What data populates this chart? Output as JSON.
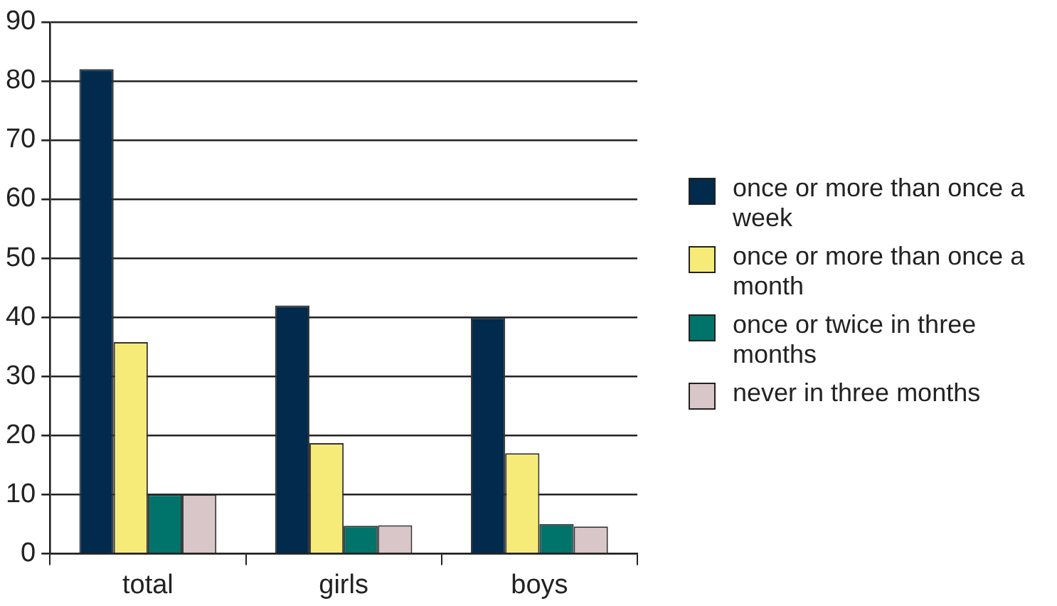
{
  "chart_data": {
    "type": "bar",
    "categories": [
      "total",
      "girls",
      "boys"
    ],
    "series": [
      {
        "name": "once or more than once a week",
        "color": "#022a4c",
        "values": [
          82,
          42,
          40
        ]
      },
      {
        "name": "once or more than once a month",
        "color": "#f6eb78",
        "values": [
          35.8,
          18.7,
          17
        ]
      },
      {
        "name": "once or twice in three months",
        "color": "#00736a",
        "values": [
          10,
          4.7,
          5
        ]
      },
      {
        "name": "never in three months",
        "color": "#d8c6c8",
        "values": [
          10,
          4.8,
          4.6
        ]
      }
    ],
    "ylim": [
      0,
      90
    ],
    "yticks": [
      0,
      10,
      20,
      30,
      40,
      50,
      60,
      70,
      80,
      90
    ],
    "grid": "y",
    "legend": "right"
  }
}
